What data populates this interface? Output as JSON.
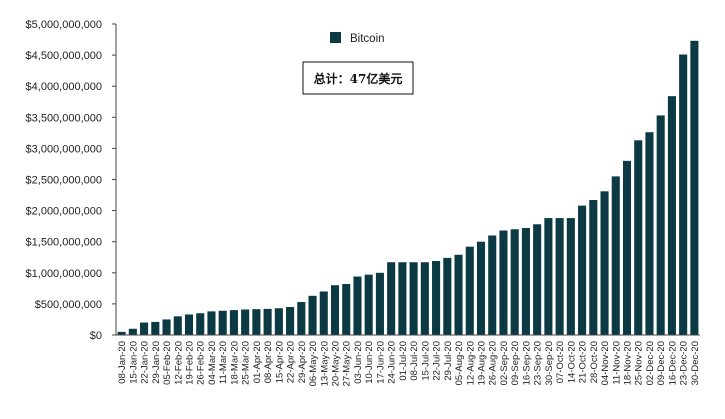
{
  "chart_data": {
    "type": "bar",
    "title": "",
    "xlabel": "",
    "ylabel": "",
    "ylim": [
      0,
      5000000000
    ],
    "grid": false,
    "legend_position": "top-center",
    "bar_color": "#0c3a44",
    "yticks": [
      0,
      500000000,
      1000000000,
      1500000000,
      2000000000,
      2500000000,
      3000000000,
      3500000000,
      4000000000,
      4500000000,
      5000000000
    ],
    "ytick_labels": [
      "$0",
      "$500,000,000",
      "$1,000,000,000",
      "$1,500,000,000",
      "$2,000,000,000",
      "$2,500,000,000",
      "$3,000,000,000",
      "$3,500,000,000",
      "$4,000,000,000",
      "$4,500,000,000",
      "$5,000,000,000"
    ],
    "categories": [
      "08-Jan-20",
      "15-Jan-20",
      "22-Jan-20",
      "29-Jan-20",
      "05-Feb-20",
      "12-Feb-20",
      "19-Feb-20",
      "26-Feb-20",
      "04-Mar-20",
      "11-Mar-20",
      "18-Mar-20",
      "25-Mar-20",
      "01-Apr-20",
      "08-Apr-20",
      "15-Apr-20",
      "22-Apr-20",
      "29-Apr-20",
      "06-May-20",
      "13-May-20",
      "20-May-20",
      "27-May-20",
      "03-Jun-20",
      "10-Jun-20",
      "17-Jun-20",
      "24-Jun-20",
      "01-Jul-20",
      "08-Jul-20",
      "15-Jul-20",
      "22-Jul-20",
      "29-Jul-20",
      "05-Aug-20",
      "12-Aug-20",
      "19-Aug-20",
      "26-Aug-20",
      "02-Sep-20",
      "09-Sep-20",
      "16-Sep-20",
      "23-Sep-20",
      "30-Sep-20",
      "07-Oct-20",
      "14-Oct-20",
      "21-Oct-20",
      "28-Oct-20",
      "04-Nov-20",
      "11-Nov-20",
      "18-Nov-20",
      "25-Nov-20",
      "02-Dec-20",
      "09-Dec-20",
      "16-Dec-20",
      "23-Dec-20",
      "30-Dec-20"
    ],
    "series": [
      {
        "name": "Bitcoin",
        "values": [
          50000000,
          100000000,
          200000000,
          210000000,
          250000000,
          300000000,
          330000000,
          350000000,
          380000000,
          390000000,
          400000000,
          410000000,
          415000000,
          420000000,
          430000000,
          450000000,
          530000000,
          630000000,
          700000000,
          800000000,
          820000000,
          940000000,
          970000000,
          1000000000,
          1170000000,
          1170000000,
          1170000000,
          1170000000,
          1190000000,
          1240000000,
          1290000000,
          1420000000,
          1500000000,
          1600000000,
          1680000000,
          1700000000,
          1720000000,
          1780000000,
          1880000000,
          1880000000,
          1880000000,
          2080000000,
          2170000000,
          2310000000,
          2550000000,
          2800000000,
          3130000000,
          3260000000,
          3530000000,
          3840000000,
          4510000000,
          4730000000
        ]
      }
    ],
    "annotation": "总计：47亿美元"
  }
}
